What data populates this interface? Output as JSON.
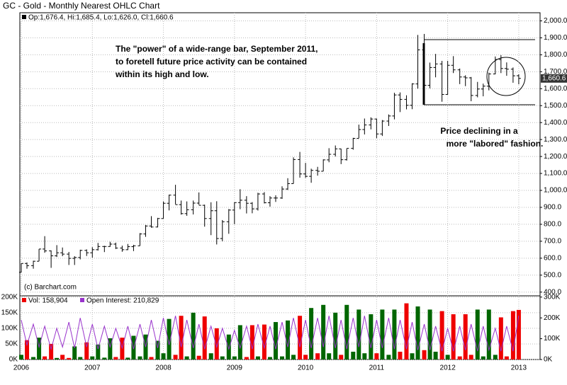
{
  "chart_data": [
    {
      "type": "ohlc",
      "title": "GC - Gold - Monthly Nearest OHLC Chart",
      "legend_text": "Op:1,676.4, Hi:1,685.4, Lo:1,626.0, Cl:1,660.6",
      "credit": "(c) Barchart.com",
      "annotations": [
        [
          "The \"power\" of a wide-range bar, September 2011,",
          "to foretell future price activity can be contained",
          "within its high and low."
        ],
        [
          "Price declining in a",
          "more \"labored\" fashion."
        ]
      ],
      "x": [
        2006,
        2006.08,
        2006.17,
        2006.25,
        2006.33,
        2006.42,
        2006.5,
        2006.58,
        2006.67,
        2006.75,
        2006.83,
        2006.92,
        2007,
        2007.08,
        2007.17,
        2007.25,
        2007.33,
        2007.42,
        2007.5,
        2007.58,
        2007.67,
        2007.75,
        2007.83,
        2007.92,
        2008,
        2008.08,
        2008.17,
        2008.25,
        2008.33,
        2008.42,
        2008.5,
        2008.58,
        2008.67,
        2008.75,
        2008.83,
        2008.92,
        2009,
        2009.08,
        2009.17,
        2009.25,
        2009.33,
        2009.42,
        2009.5,
        2009.58,
        2009.67,
        2009.75,
        2009.83,
        2009.92,
        2010,
        2010.08,
        2010.17,
        2010.25,
        2010.33,
        2010.42,
        2010.5,
        2010.58,
        2010.67,
        2010.75,
        2010.83,
        2010.92,
        2011,
        2011.08,
        2011.17,
        2011.25,
        2011.33,
        2011.42,
        2011.5,
        2011.58,
        2011.67,
        2011.75,
        2011.83,
        2011.92,
        2012,
        2012.08,
        2012.17,
        2012.25,
        2012.33,
        2012.42,
        2012.5,
        2012.58,
        2012.67,
        2012.75,
        2012.83,
        2012.92,
        2013
      ],
      "open": [
        517,
        569,
        556,
        582,
        654,
        643,
        614,
        632,
        624,
        599,
        604,
        646,
        632,
        650,
        669,
        669,
        683,
        660,
        650,
        668,
        673,
        743,
        790,
        784,
        834,
        924,
        972,
        916,
        863,
        886,
        925,
        912,
        834,
        880,
        716,
        815,
        884,
        928,
        942,
        924,
        891,
        979,
        927,
        955,
        955,
        1008,
        1040,
        1182,
        1097,
        1083,
        1118,
        1113,
        1180,
        1213,
        1245,
        1181,
        1248,
        1307,
        1359,
        1386,
        1421,
        1333,
        1409,
        1439,
        1563,
        1537,
        1502,
        1628,
        1829,
        1620,
        1725,
        1746,
        1566,
        1738,
        1711,
        1669,
        1664,
        1560,
        1598,
        1615,
        1687,
        1772,
        1719,
        1715,
        1676.4
      ],
      "high": [
        570,
        575,
        585,
        654,
        730,
        646,
        677,
        663,
        637,
        612,
        650,
        652,
        665,
        690,
        673,
        697,
        692,
        674,
        684,
        679,
        748,
        796,
        848,
        838,
        935,
        975,
        1033,
        940,
        935,
        940,
        988,
        916,
        930,
        936,
        825,
        890,
        930,
        1007,
        966,
        931,
        986,
        990,
        966,
        971,
        1024,
        1072,
        1195,
        1227,
        1162,
        1128,
        1139,
        1183,
        1249,
        1265,
        1246,
        1247,
        1310,
        1388,
        1424,
        1431,
        1424,
        1415,
        1448,
        1576,
        1578,
        1561,
        1632,
        1917,
        1923,
        1754,
        1805,
        1764,
        1764,
        1792,
        1719,
        1679,
        1669,
        1640,
        1630,
        1695,
        1790,
        1798,
        1755,
        1725,
        1685.4
      ],
      "low": [
        516,
        538,
        538,
        582,
        632,
        543,
        607,
        612,
        560,
        560,
        593,
        613,
        603,
        645,
        636,
        667,
        654,
        638,
        648,
        642,
        673,
        726,
        780,
        782,
        834,
        882,
        918,
        857,
        850,
        858,
        915,
        786,
        736,
        681,
        700,
        744,
        801,
        889,
        864,
        865,
        881,
        923,
        904,
        932,
        950,
        1003,
        1040,
        1075,
        1074,
        1045,
        1087,
        1113,
        1166,
        1200,
        1155,
        1176,
        1240,
        1308,
        1330,
        1360,
        1308,
        1321,
        1380,
        1419,
        1462,
        1478,
        1479,
        1600,
        1535,
        1602,
        1667,
        1523,
        1564,
        1692,
        1627,
        1615,
        1526,
        1549,
        1555,
        1590,
        1685,
        1692,
        1676,
        1635,
        1626
      ],
      "close": [
        569,
        556,
        582,
        654,
        643,
        614,
        632,
        624,
        599,
        604,
        646,
        632,
        650,
        669,
        669,
        683,
        660,
        650,
        668,
        673,
        743,
        790,
        784,
        834,
        924,
        972,
        916,
        863,
        886,
        925,
        912,
        834,
        880,
        716,
        815,
        884,
        928,
        942,
        924,
        891,
        979,
        927,
        955,
        955,
        1008,
        1040,
        1182,
        1097,
        1083,
        1118,
        1113,
        1180,
        1213,
        1245,
        1181,
        1248,
        1307,
        1359,
        1386,
        1421,
        1333,
        1409,
        1439,
        1563,
        1537,
        1502,
        1628,
        1829,
        1620,
        1725,
        1746,
        1566,
        1738,
        1711,
        1669,
        1664,
        1560,
        1598,
        1615,
        1687,
        1772,
        1719,
        1715,
        1676,
        1660.6
      ],
      "color": "#000000",
      "last_price": {
        "value": 1660.6,
        "label": "1,660.6"
      },
      "xlim": [
        2006,
        2013.3
      ],
      "xticks": [
        2006,
        2007,
        2008,
        2009,
        2010,
        2011,
        2012,
        2013
      ],
      "ylim": [
        378,
        2048
      ],
      "yticks": [
        {
          "value": 400,
          "label": "400.0"
        },
        {
          "value": 500,
          "label": "500.0"
        },
        {
          "value": 600,
          "label": "600.0"
        },
        {
          "value": 700,
          "label": "700.0"
        },
        {
          "value": 800,
          "label": "800.0"
        },
        {
          "value": 900,
          "label": "900.0"
        },
        {
          "value": 1000,
          "label": "1,000.0"
        },
        {
          "value": 1100,
          "label": "1,100.0"
        },
        {
          "value": 1200,
          "label": "1,200.0"
        },
        {
          "value": 1300,
          "label": "1,300.0"
        },
        {
          "value": 1400,
          "label": "1,400.0"
        },
        {
          "value": 1500,
          "label": "1,500.0"
        },
        {
          "value": 1600,
          "label": "1,600.0"
        },
        {
          "value": 1700,
          "label": "1,700.0"
        },
        {
          "value": 1800,
          "label": "1,800.0"
        },
        {
          "value": 1900,
          "label": "1,900.0"
        },
        {
          "value": 2000,
          "label": "2,000.0"
        }
      ],
      "grid": true
    },
    {
      "type": "volume",
      "up_color": "#006600",
      "down_color": "#ee0000",
      "series": [
        {
          "name": "Vol: 158,904",
          "color": "#ee0000",
          "values": [
            15000,
            62000,
            8000,
            70000,
            10000,
            50000,
            5000,
            15000,
            5000,
            42000,
            8000,
            55000,
            10000,
            48000,
            6000,
            68000,
            8000,
            70000,
            6000,
            76000,
            10000,
            80000,
            8000,
            60000,
            20000,
            130000,
            15000,
            140000,
            10000,
            150000,
            12000,
            138000,
            20000,
            100000,
            10000,
            80000,
            10000,
            110000,
            8000,
            110000,
            10000,
            112000,
            8000,
            120000,
            10000,
            125000,
            15000,
            140000,
            15000,
            165000,
            20000,
            175000,
            20000,
            150000,
            15000,
            175000,
            25000,
            160000,
            20000,
            145000,
            20000,
            160000,
            15000,
            160000,
            25000,
            180000,
            20000,
            170000,
            30000,
            160000,
            25000,
            155000,
            15000,
            145000,
            10000,
            145000,
            15000,
            160000,
            10000,
            160000,
            15000,
            135000,
            10000,
            155000,
            158904
          ]
        },
        {
          "name": "Open Interest: 210,829",
          "color": "#9933cc",
          "axis": "y2",
          "values": [
            190000,
            70000,
            170000,
            60000,
            160000,
            50000,
            150000,
            60000,
            180000,
            55000,
            200000,
            60000,
            170000,
            50000,
            160000,
            60000,
            150000,
            55000,
            160000,
            50000,
            170000,
            60000,
            190000,
            55000,
            200000,
            70000,
            210000,
            60000,
            190000,
            55000,
            170000,
            50000,
            160000,
            60000,
            150000,
            50000,
            140000,
            55000,
            160000,
            50000,
            170000,
            55000,
            160000,
            50000,
            180000,
            60000,
            200000,
            60000,
            190000,
            55000,
            200000,
            60000,
            210000,
            55000,
            190000,
            50000,
            200000,
            60000,
            210000,
            55000,
            190000,
            55000,
            200000,
            50000,
            190000,
            50000,
            180000,
            45000,
            170000,
            45000,
            160000,
            40000,
            150000,
            40000,
            160000,
            45000,
            170000,
            40000,
            160000,
            45000,
            150000,
            40000,
            160000,
            40000,
            210829
          ]
        }
      ],
      "ylim": [
        0,
        204000
      ],
      "yticks": [
        {
          "value": 0,
          "label": "0K"
        },
        {
          "value": 50000,
          "label": "50K"
        },
        {
          "value": 100000,
          "label": "100K"
        },
        {
          "value": 150000,
          "label": "150K"
        },
        {
          "value": 200000,
          "label": "200K"
        }
      ],
      "y2lim": [
        0,
        306000
      ],
      "y2ticks": [
        {
          "value": 0,
          "label": "0K"
        },
        {
          "value": 100000,
          "label": "100K"
        },
        {
          "value": 200000,
          "label": "200K"
        },
        {
          "value": 300000,
          "label": "300K"
        }
      ]
    }
  ]
}
